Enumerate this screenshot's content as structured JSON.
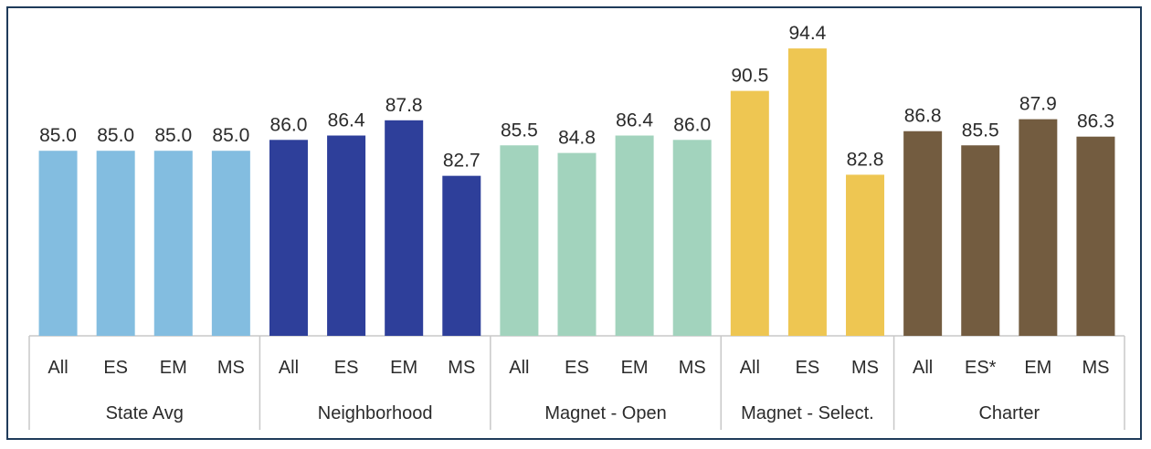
{
  "chart_data": {
    "type": "bar",
    "title": "",
    "xlabel": "",
    "ylabel": "",
    "ylim": [
      68,
      96
    ],
    "grid": false,
    "legend": "none",
    "groups": [
      {
        "name": "State Avg",
        "color": "#83bde0",
        "categories": [
          "All",
          "ES",
          "EM",
          "MS"
        ],
        "values": [
          85.0,
          85.0,
          85.0,
          85.0
        ],
        "labels": [
          "85.0",
          "85.0",
          "85.0",
          "85.0"
        ]
      },
      {
        "name": "Neighborhood",
        "color": "#2e3f9a",
        "categories": [
          "All",
          "ES",
          "EM",
          "MS"
        ],
        "values": [
          86.0,
          86.4,
          87.8,
          82.7
        ],
        "labels": [
          "86.0",
          "86.4",
          "87.8",
          "82.7"
        ]
      },
      {
        "name": "Magnet - Open",
        "color": "#a2d3bd",
        "categories": [
          "All",
          "ES",
          "EM",
          "MS"
        ],
        "values": [
          85.5,
          84.8,
          86.4,
          86.0
        ],
        "labels": [
          "85.5",
          "84.8",
          "86.4",
          "86.0"
        ]
      },
      {
        "name": "Magnet - Select.",
        "color": "#eec652",
        "categories": [
          "All",
          "ES",
          "MS"
        ],
        "values": [
          90.5,
          94.4,
          82.8
        ],
        "labels": [
          "90.5",
          "94.4",
          "82.8"
        ]
      },
      {
        "name": "Charter",
        "color": "#735c40",
        "categories": [
          "All",
          "ES*",
          "EM",
          "MS"
        ],
        "values": [
          86.8,
          85.5,
          87.9,
          86.3
        ],
        "labels": [
          "86.8",
          "85.5",
          "87.9",
          "86.3"
        ]
      }
    ]
  }
}
